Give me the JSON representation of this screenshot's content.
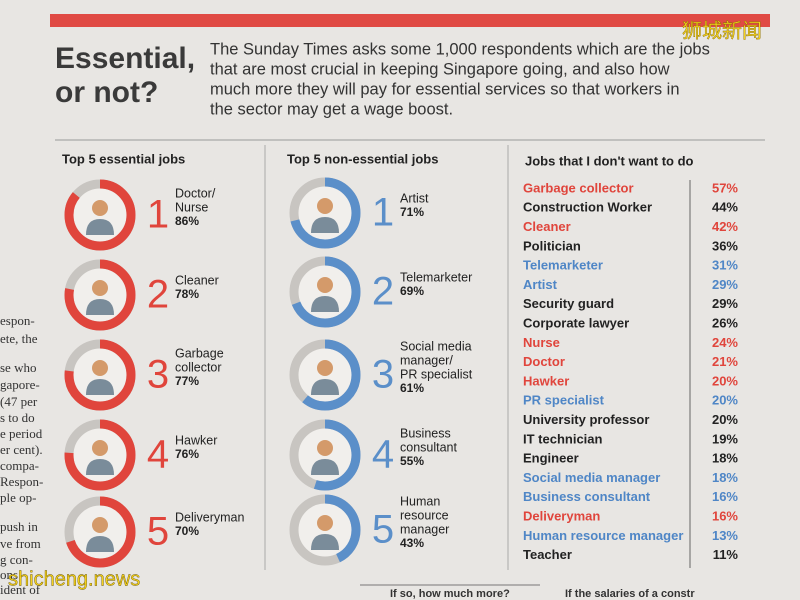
{
  "watermark": {
    "top": "狮城新闻",
    "bottom": "shicheng.news"
  },
  "header": {
    "title_lines": [
      "Essential,",
      "or not?"
    ],
    "intro_lines": [
      "The Sunday Times asks some 1,000 respondents which are the jobs",
      "that are most crucial in keeping Singapore going, and also how",
      "much more they will pay for essential services so that workers in",
      "the sector may get a wage boost."
    ]
  },
  "essential": {
    "title": "Top 5 essential jobs",
    "color": "#e0453c",
    "items": [
      {
        "rank": 1,
        "label_lines": [
          "Doctor/",
          "Nurse"
        ],
        "value": 86,
        "value_label": "86%"
      },
      {
        "rank": 2,
        "label_lines": [
          "Cleaner"
        ],
        "value": 78,
        "value_label": "78%"
      },
      {
        "rank": 3,
        "label_lines": [
          "Garbage",
          "collector"
        ],
        "value": 77,
        "value_label": "77%"
      },
      {
        "rank": 4,
        "label_lines": [
          "Hawker"
        ],
        "value": 76,
        "value_label": "76%"
      },
      {
        "rank": 5,
        "label_lines": [
          "Deliveryman"
        ],
        "value": 70,
        "value_label": "70%"
      }
    ]
  },
  "non_essential": {
    "title": "Top 5 non-essential jobs",
    "color": "#5b8fc9",
    "items": [
      {
        "rank": 1,
        "label_lines": [
          "Artist"
        ],
        "value": 71,
        "value_label": "71%"
      },
      {
        "rank": 2,
        "label_lines": [
          "Telemarketer"
        ],
        "value": 69,
        "value_label": "69%"
      },
      {
        "rank": 3,
        "label_lines": [
          "Social media",
          "manager/",
          "PR specialist"
        ],
        "value": 61,
        "value_label": "61%"
      },
      {
        "rank": 4,
        "label_lines": [
          "Business",
          "consultant"
        ],
        "value": 55,
        "value_label": "55%"
      },
      {
        "rank": 5,
        "label_lines": [
          "Human",
          "resource",
          "manager"
        ],
        "value": 43,
        "value_label": "43%"
      }
    ]
  },
  "dislike": {
    "title": "Jobs that I don't want to do",
    "items": [
      {
        "name": "Garbage collector",
        "value_label": "57%",
        "color": "#e0453c"
      },
      {
        "name": "Construction Worker",
        "value_label": "44%",
        "color": "#222222"
      },
      {
        "name": "Cleaner",
        "value_label": "42%",
        "color": "#e0453c"
      },
      {
        "name": "Politician",
        "value_label": "36%",
        "color": "#222222"
      },
      {
        "name": "Telemarketer",
        "value_label": "31%",
        "color": "#4f86c6"
      },
      {
        "name": "Artist",
        "value_label": "29%",
        "color": "#4f86c6"
      },
      {
        "name": "Security guard",
        "value_label": "29%",
        "color": "#222222"
      },
      {
        "name": "Corporate lawyer",
        "value_label": "26%",
        "color": "#222222"
      },
      {
        "name": "Nurse",
        "value_label": "24%",
        "color": "#e0453c"
      },
      {
        "name": "Doctor",
        "value_label": "21%",
        "color": "#e0453c"
      },
      {
        "name": "Hawker",
        "value_label": "20%",
        "color": "#e0453c"
      },
      {
        "name": "PR specialist",
        "value_label": "20%",
        "color": "#4f86c6"
      },
      {
        "name": "University professor",
        "value_label": "20%",
        "color": "#222222"
      },
      {
        "name": "IT technician",
        "value_label": "19%",
        "color": "#222222"
      },
      {
        "name": "Engineer",
        "value_label": "18%",
        "color": "#222222"
      },
      {
        "name": "Social media manager",
        "value_label": "18%",
        "color": "#4f86c6"
      },
      {
        "name": "Business consultant",
        "value_label": "16%",
        "color": "#4f86c6"
      },
      {
        "name": "Deliveryman",
        "value_label": "16%",
        "color": "#e0453c"
      },
      {
        "name": "Human resource manager",
        "value_label": "13%",
        "color": "#4f86c6"
      },
      {
        "name": "Teacher",
        "value_label": "11%",
        "color": "#222222"
      }
    ]
  },
  "fragments": {
    "left_margin": [
      "espon-",
      "ete, the",
      "se who",
      "gapore-",
      "(47 per",
      "s to do",
      "e period",
      "er cent).",
      "compa-",
      "Respon-",
      "ple op-",
      "push in",
      "ve from",
      "g con-",
      "ons",
      "ident of"
    ],
    "bottom": [
      "If so, how much more?",
      "If the salaries of a constr"
    ]
  }
}
